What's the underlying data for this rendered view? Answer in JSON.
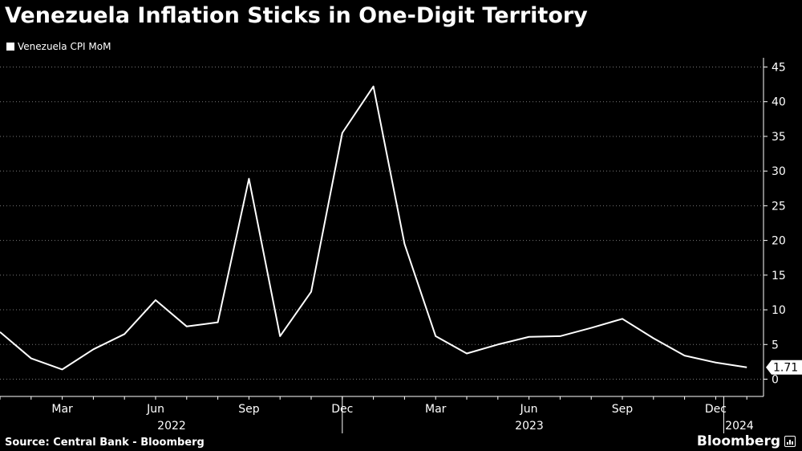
{
  "header": {
    "title": "Venezuela Inflation Sticks in One-Digit Territory"
  },
  "footer": {
    "source": "Source: Central Bank - Bloomberg",
    "brand": "Bloomberg"
  },
  "colors": {
    "background": "#000000",
    "line": "#ffffff",
    "grid": "#7a7a7a"
  },
  "chart_data": {
    "type": "line",
    "title": "Venezuela Inflation Sticks in One-Digit Territory",
    "xlabel": "",
    "ylabel": "",
    "ylim": [
      -2.5,
      45
    ],
    "yticks": [
      0,
      5,
      10,
      15,
      20,
      25,
      30,
      35,
      40,
      45
    ],
    "grid": "horizontal dotted",
    "axis_position": "right",
    "legend": "top-left",
    "x": [
      "2022-01",
      "2022-02",
      "2022-03",
      "2022-04",
      "2022-05",
      "2022-06",
      "2022-07",
      "2022-08",
      "2022-09",
      "2022-10",
      "2022-11",
      "2022-12",
      "2023-01",
      "2023-02",
      "2023-03",
      "2023-04",
      "2023-05",
      "2023-06",
      "2023-07",
      "2023-08",
      "2023-09",
      "2023-10",
      "2023-11",
      "2023-12",
      "2024-01"
    ],
    "month_ticks": [
      {
        "label": "Mar",
        "x": "2022-03"
      },
      {
        "label": "Jun",
        "x": "2022-06"
      },
      {
        "label": "Sep",
        "x": "2022-09"
      },
      {
        "label": "Dec",
        "x": "2022-12"
      },
      {
        "label": "Mar",
        "x": "2023-03"
      },
      {
        "label": "Jun",
        "x": "2023-06"
      },
      {
        "label": "Sep",
        "x": "2023-09"
      },
      {
        "label": "Dec",
        "x": "2023-12"
      }
    ],
    "year_labels": [
      "2022",
      "2023",
      "2024"
    ],
    "series": [
      {
        "name": "Venezuela CPI MoM",
        "values": [
          6.8,
          3.0,
          1.4,
          4.3,
          6.5,
          11.4,
          7.6,
          8.2,
          28.9,
          6.2,
          12.6,
          35.5,
          42.2,
          19.5,
          6.2,
          3.7,
          5.0,
          6.1,
          6.2,
          7.4,
          8.7,
          5.9,
          3.4,
          2.4,
          1.71
        ]
      }
    ],
    "last_value_label": "1.71"
  }
}
